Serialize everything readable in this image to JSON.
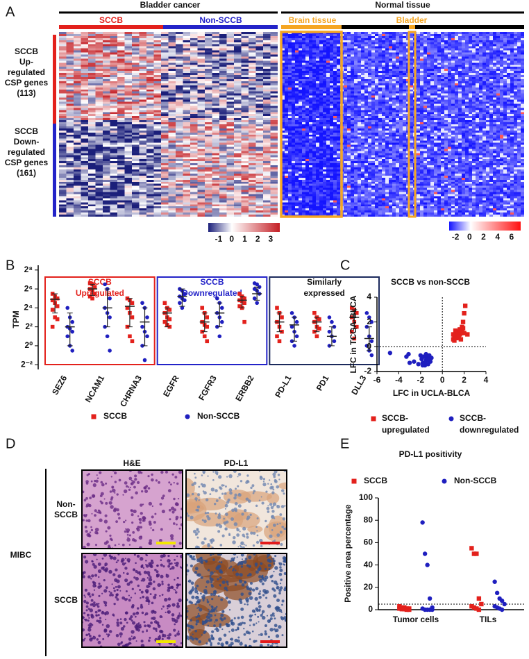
{
  "heatmap": {
    "panel": "A",
    "cancer": "Bladder cancer",
    "normal": "Normal tissue",
    "sccb": "SCCB",
    "non_sccb": "Non-SCCB",
    "brain": "Brain tissue",
    "bladder": "Bladder",
    "up_label": [
      "SCCB",
      "Up-",
      "regulated",
      "CSP genes",
      "(113)"
    ],
    "down_label": [
      "SCCB",
      "Down-",
      "regulated",
      "CSP genes",
      "(161)"
    ],
    "colorbar_left": {
      "lim": [
        -1.8,
        3.7
      ],
      "ticks": [
        -1,
        0,
        1,
        2,
        3
      ]
    },
    "colorbar_right": {
      "lim": [
        -2.9,
        7.3
      ],
      "ticks": [
        -2,
        0,
        2,
        4,
        6
      ]
    }
  },
  "micrographs": {
    "panel": "D",
    "group": "MIBC",
    "columns": [
      "H&E",
      "PD-L1"
    ],
    "rows": [
      [
        "Non-",
        "SCCB"
      ],
      [
        "SCCB"
      ]
    ]
  },
  "chart_data": [
    {
      "type": "dotplot",
      "panel": "B",
      "y_label": "TPM",
      "log_scale": true,
      "ylim": [
        0.177,
        362
      ],
      "yticks": [
        {
          "value": 0.25,
          "label": "2⁻²"
        },
        {
          "value": 1,
          "label": "2⁰"
        },
        {
          "value": 4,
          "label": "2²"
        },
        {
          "value": 16,
          "label": "2⁴"
        },
        {
          "value": 64,
          "label": "2⁶"
        },
        {
          "value": 256,
          "label": "2⁸"
        }
      ],
      "categories": [
        "SEZ6",
        "NCAM1",
        "CHRNA3",
        "EGFR",
        "FGFR3",
        "ERBB2",
        "PD-L1",
        "PD1",
        "DLL3"
      ],
      "groups": [
        {
          "title": [
            "SCCB",
            "Upregulated"
          ],
          "color": "#e3211c"
        },
        {
          "title": [
            "SCCB",
            "Downregulated"
          ],
          "color": "#2323c8"
        },
        {
          "title": [
            "Similarly",
            "expressed"
          ],
          "color": "#1b2a5c"
        }
      ],
      "series": [
        {
          "name": "SCCB",
          "color": "#e3211c",
          "marker": "square",
          "values": [
            [
              45,
              37,
              32,
              28,
              23,
              18,
              14,
              8,
              7,
              4
            ],
            [
              97,
              90,
              74,
              64,
              56,
              45,
              37,
              32
            ],
            [
              32,
              28,
              23,
              16,
              11,
              8,
              4,
              2,
              1.4
            ],
            [
              23,
              16,
              14,
              11,
              8,
              7,
              5.7,
              4.6,
              4
            ],
            [
              16,
              11,
              8,
              5.7,
              4.6,
              4,
              2.8,
              2,
              1.4
            ],
            [
              45,
              37,
              32,
              28,
              26,
              23,
              18,
              16,
              5.7
            ],
            [
              16,
              11,
              8,
              5.7,
              4,
              2.8,
              2,
              1.4
            ],
            [
              11,
              8,
              7,
              5.7,
              4,
              3.5,
              2.8,
              2
            ],
            [
              16,
              14,
              11,
              8,
              5.7,
              4,
              2.8,
              1.7
            ]
          ],
          "center": [
            30,
            64,
            18,
            11,
            5.7,
            28,
            5.7,
            5.7,
            8
          ],
          "low": [
            11,
            40,
            4,
            4,
            2.8,
            16,
            2.8,
            2.8,
            3.5
          ],
          "high": [
            45,
            90,
            32,
            16,
            11,
            37,
            11,
            8,
            14
          ]
        },
        {
          "name": "Non-SCCB",
          "color": "#1f1fbf",
          "marker": "circle",
          "values": [
            [
              16,
              8,
              5.7,
              4,
              3.5,
              2.8,
              2,
              1,
              0.7
            ],
            [
              90,
              64,
              32,
              16,
              11,
              8,
              4,
              2,
              0.7
            ],
            [
              23,
              16,
              8,
              4,
              2.8,
              2,
              1,
              0.35
            ],
            [
              64,
              56,
              45,
              37,
              32,
              28,
              23,
              16
            ],
            [
              32,
              23,
              16,
              11,
              8,
              5.7,
              4,
              2
            ],
            [
              97,
              90,
              74,
              64,
              56,
              45,
              32,
              23
            ],
            [
              11,
              8,
              5.7,
              4,
              2.8,
              2,
              1.4,
              1
            ],
            [
              8,
              5.7,
              4,
              2.8,
              2,
              1.4,
              1
            ],
            [
              11,
              8,
              5.7,
              4,
              2,
              1.4,
              1,
              0.7,
              0.5
            ]
          ],
          "center": [
            4,
            16,
            5.7,
            37,
            11,
            45,
            4.6,
            2,
            1.7
          ],
          "low": [
            1,
            4,
            1,
            18,
            4,
            28,
            1.4,
            1,
            0.7
          ],
          "high": [
            11,
            64,
            16,
            64,
            23,
            74,
            8,
            4,
            4
          ]
        }
      ]
    },
    {
      "type": "scatter",
      "panel": "C",
      "title": "SCCB vs non-SCCB",
      "x_label": "LFC in UCLA-BLCA",
      "y_label": "LFC in TCGA-BLCA",
      "xlim": [
        -6,
        4
      ],
      "ylim": [
        -2,
        4
      ],
      "xticks": [
        -6,
        -4,
        -2,
        0,
        2,
        4
      ],
      "yticks": [
        -2,
        0,
        2,
        4
      ],
      "dotted_x": 0,
      "dotted_y": 0,
      "series": [
        {
          "name": [
            "SCCB-",
            "upregulated"
          ],
          "color": "#e3211c",
          "marker": "square",
          "x": [
            1.0,
            1.1,
            1.2,
            1.3,
            1.4,
            1.5,
            1.6,
            1.7,
            1.8,
            1.9,
            2.0,
            2.1,
            2.3,
            1.2,
            1.4,
            1.6,
            1.8,
            2.0,
            1.1,
            1.3,
            1.5,
            1.7,
            1.9,
            1.0
          ],
          "y": [
            0.6,
            0.8,
            1.0,
            0.7,
            1.2,
            0.9,
            1.4,
            1.1,
            1.6,
            2.0,
            2.7,
            3.3,
            1.0,
            1.3,
            0.9,
            1.0,
            1.2,
            1.1,
            0.5,
            0.7,
            0.8,
            0.6,
            1.5,
            1.0
          ]
        },
        {
          "name": [
            "SCCB-",
            "downregulated"
          ],
          "color": "#1f1fbf",
          "marker": "circle",
          "x": [
            -4.8,
            -3.3,
            -3.0,
            -2.6,
            -2.0,
            -1.9,
            -1.8,
            -1.7,
            -1.6,
            -1.5,
            -1.4,
            -1.3,
            -1.2,
            -1.1,
            -1.0,
            -2.2,
            -1.8,
            -1.5,
            -1.2,
            -3.1,
            -1.6,
            -1.3
          ],
          "y": [
            -0.5,
            -0.8,
            -1.3,
            -1.2,
            -0.7,
            -1.0,
            -1.3,
            -0.8,
            -1.5,
            -1.1,
            -0.9,
            -1.4,
            -0.7,
            -1.2,
            -0.9,
            -1.4,
            -1.5,
            -0.6,
            -1.1,
            -0.6,
            -1.3,
            -1.0
          ]
        }
      ]
    },
    {
      "type": "dotplot",
      "panel": "E",
      "title": "PD-L1 positivity",
      "y_label": "Positive area percentage",
      "ylim": [
        0,
        100
      ],
      "yticks": [
        0,
        20,
        40,
        60,
        80,
        100
      ],
      "threshold": 5,
      "categories": [
        "Tumor cells",
        "TILs"
      ],
      "series": [
        {
          "name": "SCCB",
          "color": "#e3211c",
          "marker": "square",
          "values": [
            [
              3,
              2,
              2,
              1,
              1,
              1,
              0.5,
              0.5,
              0,
              0
            ],
            [
              55,
              50,
              50,
              10,
              5,
              3,
              2,
              1,
              0
            ]
          ]
        },
        {
          "name": "Non-SCCB",
          "color": "#1f1fbf",
          "marker": "circle",
          "values": [
            [
              78,
              50,
              40,
              10,
              2,
              1,
              0,
              0,
              0,
              0
            ],
            [
              25,
              15,
              10,
              8,
              5,
              3,
              2,
              1,
              0
            ]
          ]
        }
      ]
    }
  ]
}
